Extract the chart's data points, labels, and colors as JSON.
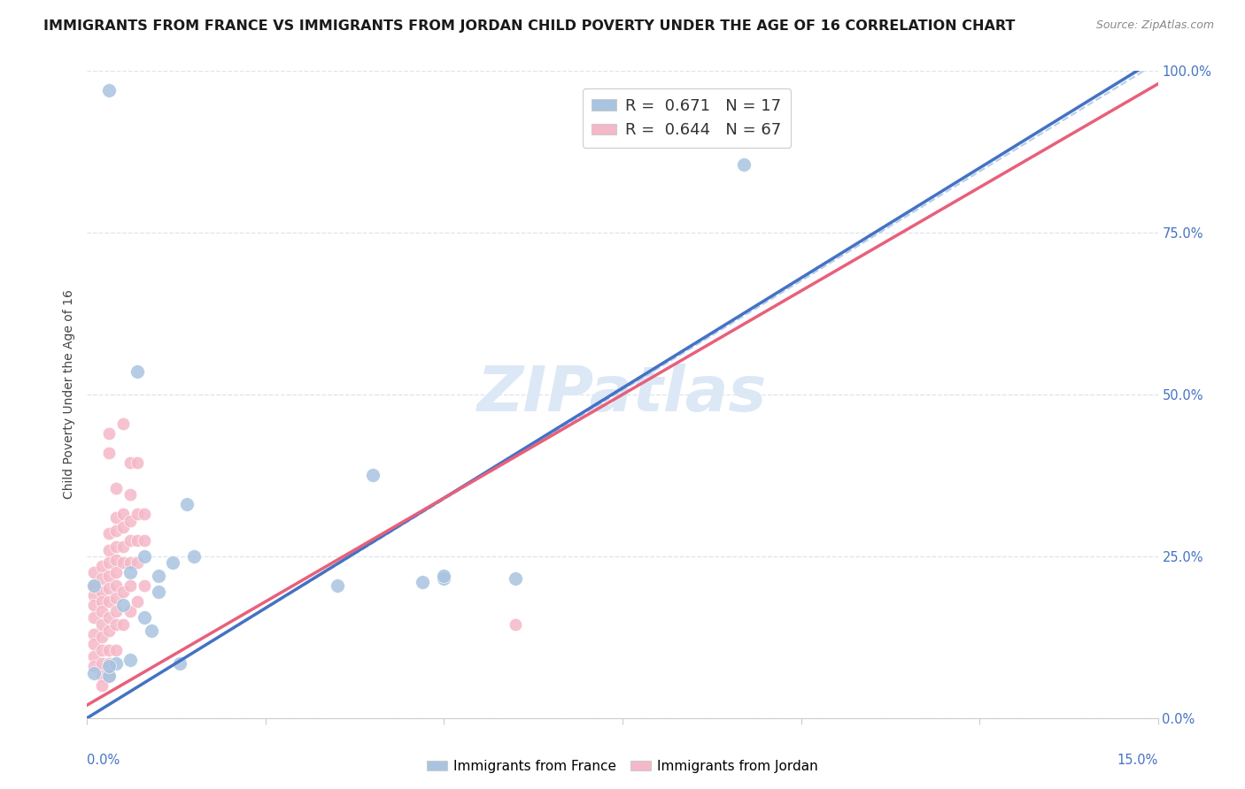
{
  "title": "IMMIGRANTS FROM FRANCE VS IMMIGRANTS FROM JORDAN CHILD POVERTY UNDER THE AGE OF 16 CORRELATION CHART",
  "source": "Source: ZipAtlas.com",
  "ylabel": "Child Poverty Under the Age of 16",
  "watermark": "ZIPatlas",
  "france_color": "#a8c4e0",
  "jordan_color": "#f5b8c8",
  "france_line_color": "#4472c4",
  "jordan_line_color": "#e8607a",
  "x_min": 0.0,
  "x_max": 0.15,
  "y_min": 0.0,
  "y_max": 1.0,
  "france_points": [
    [
      0.003,
      0.97
    ],
    [
      0.001,
      0.205
    ],
    [
      0.007,
      0.535
    ],
    [
      0.005,
      0.175
    ],
    [
      0.006,
      0.225
    ],
    [
      0.008,
      0.25
    ],
    [
      0.008,
      0.155
    ],
    [
      0.009,
      0.135
    ],
    [
      0.01,
      0.22
    ],
    [
      0.01,
      0.195
    ],
    [
      0.012,
      0.24
    ],
    [
      0.014,
      0.33
    ],
    [
      0.015,
      0.25
    ],
    [
      0.035,
      0.205
    ],
    [
      0.04,
      0.375
    ],
    [
      0.05,
      0.215
    ],
    [
      0.092,
      0.855
    ],
    [
      0.003,
      0.065
    ],
    [
      0.004,
      0.085
    ],
    [
      0.006,
      0.09
    ],
    [
      0.013,
      0.085
    ],
    [
      0.05,
      0.22
    ],
    [
      0.047,
      0.21
    ],
    [
      0.06,
      0.215
    ],
    [
      0.001,
      0.07
    ],
    [
      0.003,
      0.08
    ]
  ],
  "jordan_points": [
    [
      0.001,
      0.205
    ],
    [
      0.001,
      0.225
    ],
    [
      0.001,
      0.19
    ],
    [
      0.001,
      0.175
    ],
    [
      0.001,
      0.155
    ],
    [
      0.001,
      0.13
    ],
    [
      0.001,
      0.115
    ],
    [
      0.001,
      0.095
    ],
    [
      0.001,
      0.08
    ],
    [
      0.002,
      0.235
    ],
    [
      0.002,
      0.215
    ],
    [
      0.002,
      0.195
    ],
    [
      0.002,
      0.18
    ],
    [
      0.002,
      0.165
    ],
    [
      0.002,
      0.145
    ],
    [
      0.002,
      0.125
    ],
    [
      0.002,
      0.105
    ],
    [
      0.002,
      0.085
    ],
    [
      0.002,
      0.065
    ],
    [
      0.002,
      0.05
    ],
    [
      0.003,
      0.44
    ],
    [
      0.003,
      0.41
    ],
    [
      0.003,
      0.285
    ],
    [
      0.003,
      0.26
    ],
    [
      0.003,
      0.24
    ],
    [
      0.003,
      0.22
    ],
    [
      0.003,
      0.2
    ],
    [
      0.003,
      0.18
    ],
    [
      0.003,
      0.155
    ],
    [
      0.003,
      0.135
    ],
    [
      0.003,
      0.105
    ],
    [
      0.003,
      0.085
    ],
    [
      0.003,
      0.065
    ],
    [
      0.004,
      0.355
    ],
    [
      0.004,
      0.31
    ],
    [
      0.004,
      0.29
    ],
    [
      0.004,
      0.265
    ],
    [
      0.004,
      0.245
    ],
    [
      0.004,
      0.225
    ],
    [
      0.004,
      0.205
    ],
    [
      0.004,
      0.185
    ],
    [
      0.004,
      0.165
    ],
    [
      0.004,
      0.145
    ],
    [
      0.004,
      0.105
    ],
    [
      0.005,
      0.455
    ],
    [
      0.005,
      0.315
    ],
    [
      0.005,
      0.295
    ],
    [
      0.005,
      0.265
    ],
    [
      0.005,
      0.24
    ],
    [
      0.005,
      0.195
    ],
    [
      0.005,
      0.145
    ],
    [
      0.006,
      0.395
    ],
    [
      0.006,
      0.345
    ],
    [
      0.006,
      0.305
    ],
    [
      0.006,
      0.275
    ],
    [
      0.006,
      0.24
    ],
    [
      0.006,
      0.205
    ],
    [
      0.006,
      0.165
    ],
    [
      0.007,
      0.395
    ],
    [
      0.007,
      0.315
    ],
    [
      0.007,
      0.275
    ],
    [
      0.007,
      0.24
    ],
    [
      0.007,
      0.18
    ],
    [
      0.008,
      0.315
    ],
    [
      0.008,
      0.275
    ],
    [
      0.008,
      0.205
    ],
    [
      0.06,
      0.145
    ]
  ],
  "france_line": [
    [
      0.0,
      0.0
    ],
    [
      0.15,
      1.02
    ]
  ],
  "jordan_line": [
    [
      0.0,
      0.02
    ],
    [
      0.15,
      0.98
    ]
  ],
  "diag_line": [
    [
      0.0,
      0.0
    ],
    [
      0.148,
      1.0
    ]
  ],
  "background_color": "#ffffff",
  "grid_color": "#dde4ef",
  "title_fontsize": 11.5,
  "axis_label_fontsize": 10,
  "tick_fontsize": 10.5,
  "watermark_fontsize": 52,
  "watermark_color": "#dce8f5",
  "watermark_alpha": 1.0
}
